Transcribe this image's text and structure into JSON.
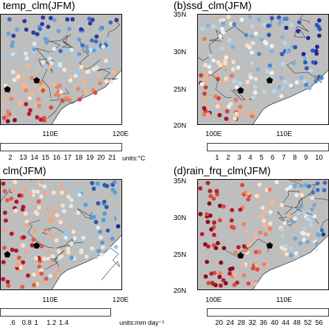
{
  "panels": [
    {
      "id": "a",
      "title": "temp_clm(JFM)",
      "x_ticks": [
        "110E",
        "120E"
      ],
      "y_ticks": [],
      "colorbar_labels": [
        "2",
        "13",
        "14",
        "15",
        "16",
        "17",
        "18",
        "19",
        "20",
        "21"
      ],
      "colorbar_colors": [
        "#2b3aa8",
        "#3f6fc2",
        "#6aa0d8",
        "#9ec7e8",
        "#d6ecf6",
        "#fbe4cc",
        "#f6b58d",
        "#ee8460",
        "#dd4b3e",
        "#bb1d28",
        "#8b0c1e"
      ],
      "units": "units:°C"
    },
    {
      "id": "b",
      "title": "(b)ssd_clm(JFM)",
      "x_ticks": [
        "100E",
        "110E"
      ],
      "y_ticks": [
        "35N",
        "30N",
        "25N",
        "20N"
      ],
      "colorbar_labels": [
        "1",
        "2",
        "3",
        "4",
        "5",
        "6",
        "7",
        "8",
        "9",
        "10"
      ],
      "colorbar_colors": [
        "#1f2a9c",
        "#2f58b8",
        "#4f86cc",
        "#7fb2de",
        "#b6d8ec",
        "#e8f3f8",
        "#fdddc4",
        "#f7ac83",
        "#ec7657",
        "#d43c37",
        "#a31624"
      ],
      "units": ""
    },
    {
      "id": "c",
      "title": "clm(JFM)",
      "x_ticks": [
        "110E",
        "120E"
      ],
      "y_ticks": [],
      "colorbar_labels": [
        ".6",
        "0.8",
        "1",
        "1.2",
        "1.4"
      ],
      "colorbar_colors": [
        "#b5152a",
        "#e05a45",
        "#f4a582",
        "#fde0c6",
        "#dbeaf3",
        "#9dc6e2",
        "#5b9cd0",
        "#2a5bb0",
        "#1a2d8e"
      ],
      "units": "units:mm day⁻¹"
    },
    {
      "id": "d",
      "title": "(d)rain_frq_clm(JFM)",
      "x_ticks": [
        "100E",
        "110E"
      ],
      "y_ticks": [
        "35N",
        "30N",
        "25N",
        "20N"
      ],
      "colorbar_labels": [
        "20",
        "24",
        "28",
        "32",
        "36",
        "40",
        "44",
        "48",
        "52",
        "56"
      ],
      "colorbar_colors": [
        "#8a0c1d",
        "#b91c2a",
        "#dc4a3c",
        "#ef7f5c",
        "#f8b490",
        "#fde2cc",
        "#e3eff5",
        "#b0d3e8",
        "#74a9d3",
        "#3f74bd",
        "#2140a0"
      ],
      "units": ""
    }
  ]
}
